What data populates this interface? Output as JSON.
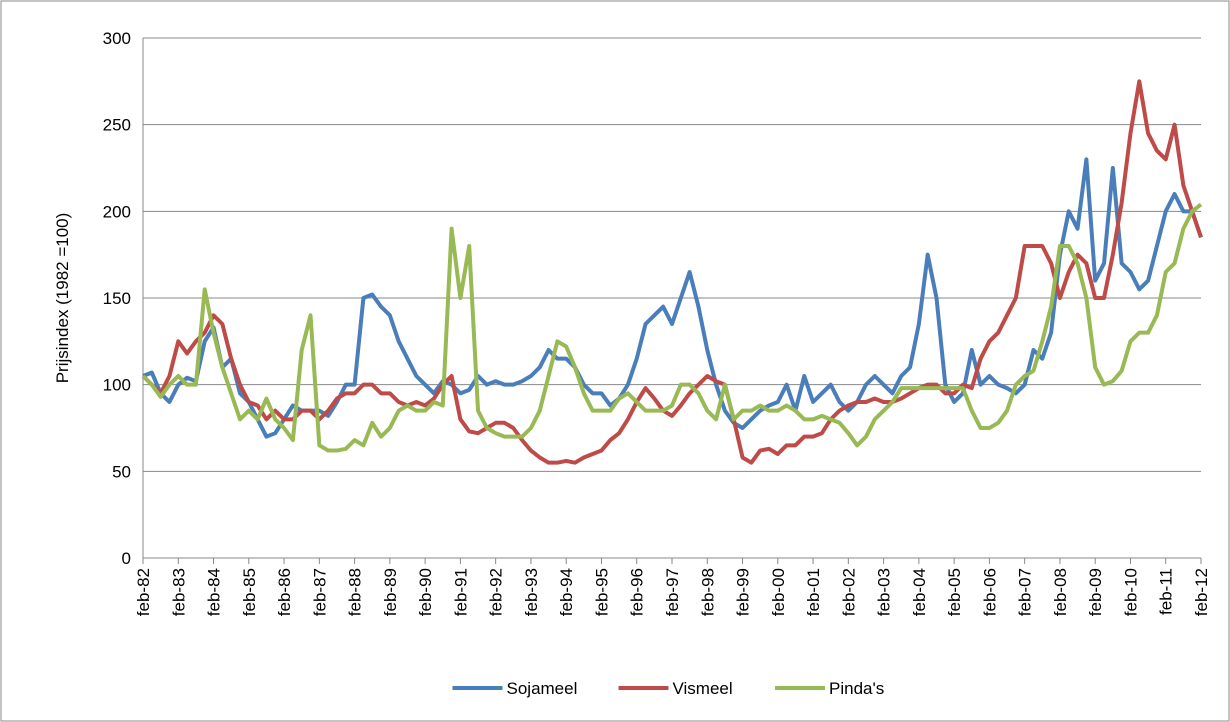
{
  "chart_data": {
    "type": "line",
    "y_label": "Prijsindex (1982 =100)",
    "categories": [
      "feb-82",
      null,
      null,
      null,
      "feb-83",
      null,
      null,
      null,
      "feb-84",
      null,
      null,
      null,
      "feb-85",
      null,
      null,
      null,
      "feb-86",
      null,
      null,
      null,
      "feb-87",
      null,
      null,
      null,
      "feb-88",
      null,
      null,
      null,
      "feb-89",
      null,
      null,
      null,
      "feb-90",
      null,
      null,
      null,
      "feb-91",
      null,
      null,
      null,
      "feb-92",
      null,
      null,
      null,
      "feb-93",
      null,
      null,
      null,
      "feb-94",
      null,
      null,
      null,
      "feb-95",
      null,
      null,
      null,
      "feb-96",
      null,
      null,
      null,
      "feb-97",
      null,
      null,
      null,
      "feb-98",
      null,
      null,
      null,
      "feb-99",
      null,
      null,
      null,
      "feb-00",
      null,
      null,
      null,
      "feb-01",
      null,
      null,
      null,
      "feb-02",
      null,
      null,
      null,
      "feb-03",
      null,
      null,
      null,
      "feb-04",
      null,
      null,
      null,
      "feb-05",
      null,
      null,
      null,
      "feb-06",
      null,
      null,
      null,
      "feb-07",
      null,
      null,
      null,
      "feb-08",
      null,
      null,
      null,
      "feb-09",
      null,
      null,
      null,
      "feb-10",
      null,
      null,
      null,
      "feb-11",
      null,
      null,
      null,
      "feb-12"
    ],
    "series": [
      {
        "name": "Sojameel",
        "color": "#4a7ebb",
        "values": [
          105,
          107,
          95,
          90,
          100,
          104,
          102,
          125,
          133,
          110,
          115,
          95,
          90,
          80,
          70,
          72,
          80,
          88,
          85,
          85,
          85,
          82,
          90,
          100,
          100,
          150,
          152,
          145,
          140,
          125,
          115,
          105,
          100,
          95,
          102,
          100,
          95,
          97,
          105,
          100,
          102,
          100,
          100,
          102,
          105,
          110,
          120,
          115,
          115,
          110,
          100,
          95,
          95,
          88,
          92,
          100,
          115,
          135,
          140,
          145,
          135,
          150,
          165,
          145,
          120,
          100,
          85,
          78,
          75,
          80,
          85,
          88,
          90,
          100,
          85,
          105,
          90,
          95,
          100,
          90,
          85,
          90,
          100,
          105,
          100,
          95,
          105,
          110,
          135,
          175,
          150,
          100,
          90,
          95,
          120,
          100,
          105,
          100,
          98,
          95,
          100,
          120,
          115,
          130,
          175,
          200,
          190,
          230,
          160,
          170,
          225,
          170,
          165,
          155,
          160,
          180,
          200,
          210,
          200,
          200,
          185
        ]
      },
      {
        "name": "Vismeel",
        "color": "#be4b48",
        "values": [
          105,
          100,
          95,
          105,
          125,
          118,
          125,
          130,
          140,
          135,
          115,
          100,
          90,
          88,
          80,
          85,
          80,
          80,
          85,
          85,
          80,
          85,
          92,
          95,
          95,
          100,
          100,
          95,
          95,
          90,
          88,
          90,
          88,
          92,
          100,
          105,
          80,
          73,
          72,
          75,
          78,
          78,
          75,
          68,
          62,
          58,
          55,
          55,
          56,
          55,
          58,
          60,
          62,
          68,
          72,
          80,
          90,
          98,
          92,
          85,
          82,
          88,
          95,
          100,
          105,
          102,
          100,
          80,
          58,
          55,
          62,
          63,
          60,
          65,
          65,
          70,
          70,
          72,
          80,
          85,
          88,
          90,
          90,
          92,
          90,
          90,
          92,
          95,
          98,
          100,
          100,
          95,
          95,
          100,
          98,
          115,
          125,
          130,
          140,
          150,
          180,
          180,
          180,
          170,
          150,
          165,
          175,
          170,
          150,
          150,
          175,
          205,
          245,
          275,
          245,
          235,
          230,
          250,
          215,
          200,
          185
        ]
      },
      {
        "name": "Pinda's",
        "color": "#98b954",
        "values": [
          105,
          100,
          93,
          100,
          105,
          100,
          100,
          155,
          130,
          110,
          95,
          80,
          85,
          80,
          92,
          80,
          75,
          68,
          120,
          140,
          65,
          62,
          62,
          63,
          68,
          65,
          78,
          70,
          75,
          85,
          88,
          85,
          85,
          90,
          88,
          190,
          150,
          180,
          85,
          75,
          72,
          70,
          70,
          70,
          75,
          85,
          105,
          125,
          122,
          110,
          95,
          85,
          85,
          85,
          92,
          95,
          90,
          85,
          85,
          85,
          88,
          100,
          100,
          95,
          85,
          80,
          100,
          80,
          85,
          85,
          88,
          85,
          85,
          88,
          85,
          80,
          80,
          82,
          80,
          78,
          72,
          65,
          70,
          80,
          85,
          90,
          98,
          98,
          98,
          98,
          98,
          98,
          98,
          98,
          85,
          75,
          75,
          78,
          85,
          100,
          105,
          108,
          125,
          145,
          180,
          180,
          170,
          150,
          110,
          100,
          102,
          108,
          125,
          130,
          130,
          140,
          165,
          170,
          190,
          200,
          204
        ]
      }
    ],
    "ylim": [
      0,
      300
    ],
    "yticks": [
      0,
      50,
      100,
      150,
      200,
      250,
      300
    ],
    "grid": true,
    "legend": "bottom"
  }
}
